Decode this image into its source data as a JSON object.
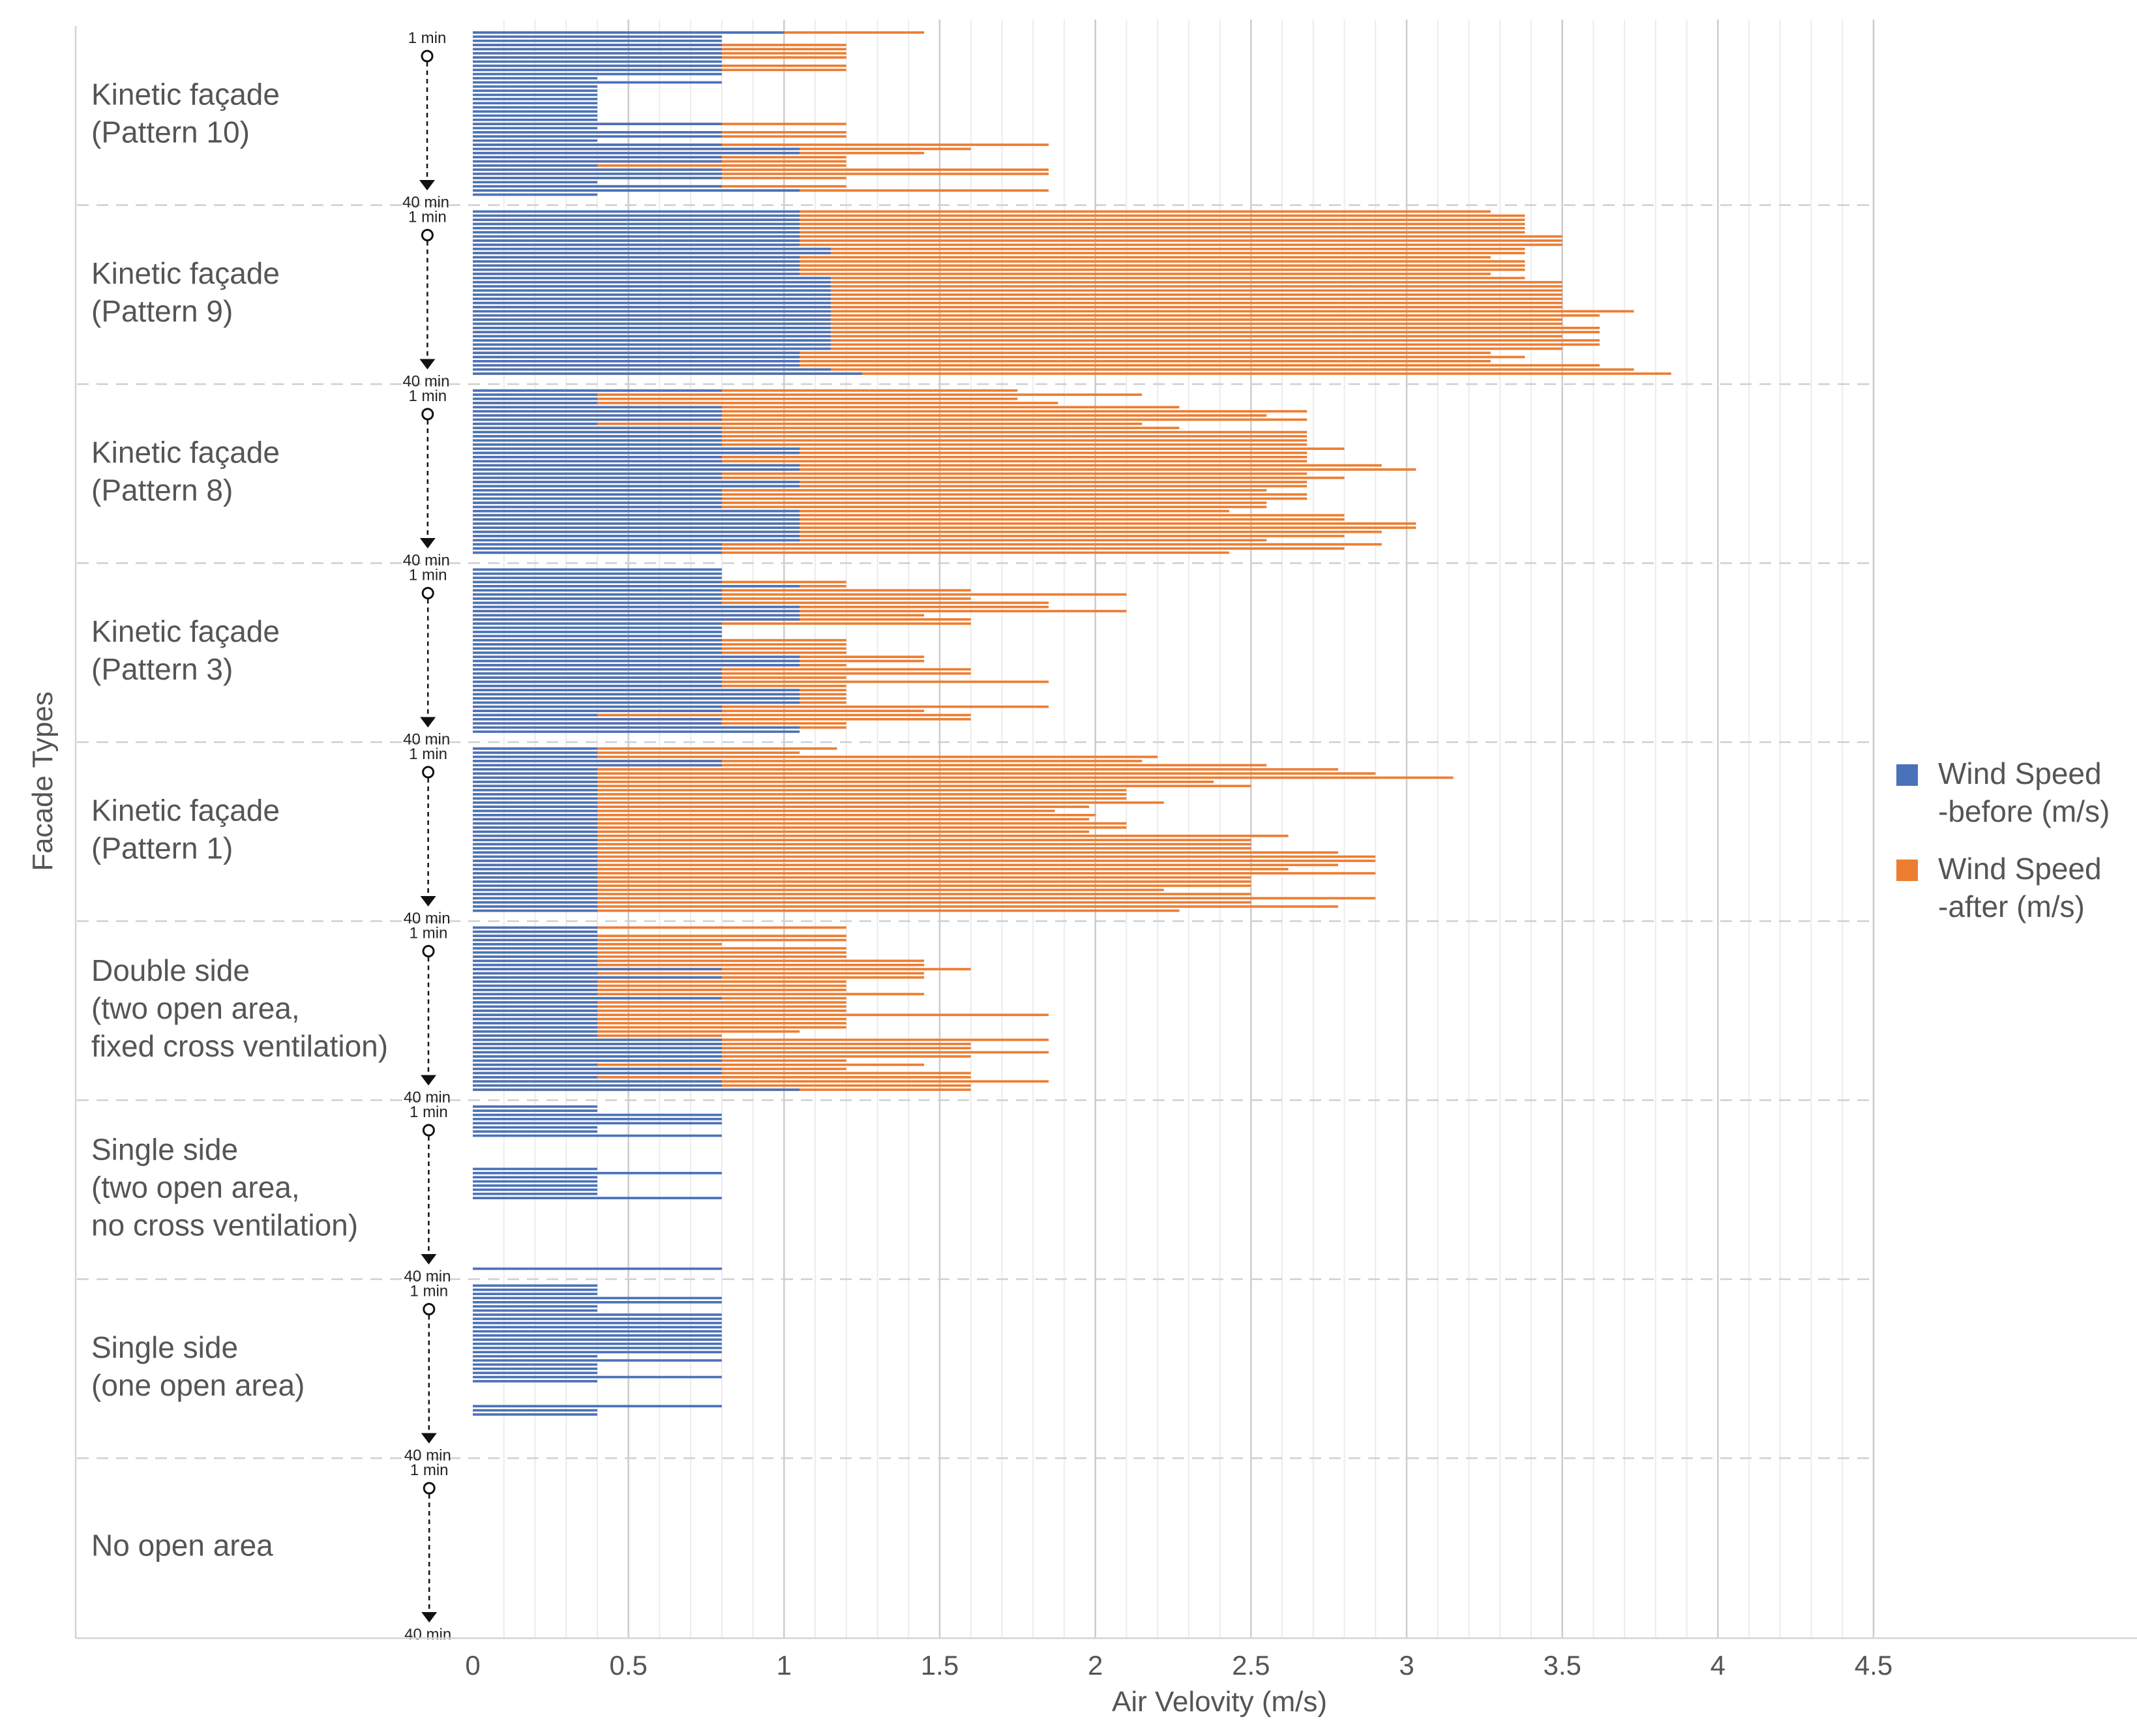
{
  "chart_data": {
    "type": "bar",
    "orientation": "horizontal",
    "xlabel": "Air Velovity (m/s)",
    "ylabel": "Facade Types",
    "xlim": [
      0,
      4.5
    ],
    "xticks": [
      "0",
      "0.5",
      "1",
      "1.5",
      "2",
      "2.5",
      "3",
      "3.5",
      "4",
      "4.5"
    ],
    "grid": "vertical",
    "legend_position": "right",
    "series": [
      {
        "name": "Wind Speed -before (m/s)",
        "legend_lines": [
          "Wind Speed",
          "-before (m/s)"
        ],
        "color": "#4a72b8"
      },
      {
        "name": "Wind Speed -after (m/s)",
        "legend_lines": [
          "Wind Speed",
          "-after (m/s)"
        ],
        "color": "#ed7d31"
      }
    ],
    "time_start_label": "1 min",
    "time_end_label": "40 min",
    "groups": [
      {
        "label_lines": [
          "Kinetic façade",
          "(Pattern 10)"
        ],
        "before": [
          1.0,
          0.8,
          0.8,
          0.8,
          0.8,
          0.8,
          0.8,
          0.8,
          0.8,
          0.8,
          0.8,
          0.4,
          0.8,
          0.4,
          0.4,
          0.4,
          0.4,
          0.4,
          0.4,
          0.4,
          0.4,
          0.4,
          0.8,
          0.4,
          0.8,
          0.8,
          0.4,
          0.8,
          1.05,
          1.05,
          0.8,
          0.8,
          0.4,
          0.8,
          0.8,
          0.8,
          0.4,
          0.8,
          1.05,
          0.4
        ],
        "after": [
          1.45,
          0,
          0,
          1.2,
          1.2,
          1.2,
          1.2,
          0,
          1.2,
          1.2,
          0,
          0,
          0,
          0,
          0,
          0,
          0,
          0,
          0,
          0,
          0,
          0,
          1.2,
          0,
          1.2,
          1.2,
          0,
          1.85,
          1.6,
          1.45,
          1.2,
          1.2,
          1.2,
          1.85,
          1.85,
          1.2,
          0,
          1.2,
          1.85,
          0
        ]
      },
      {
        "label_lines": [
          "Kinetic façade",
          "(Pattern 9)"
        ],
        "before": [
          1.05,
          1.05,
          1.05,
          1.05,
          1.05,
          1.05,
          1.05,
          1.05,
          1.05,
          1.15,
          1.15,
          1.05,
          1.05,
          1.05,
          1.05,
          1.05,
          1.15,
          1.15,
          1.15,
          1.15,
          1.15,
          1.15,
          1.15,
          1.15,
          1.15,
          1.15,
          1.15,
          1.15,
          1.15,
          1.15,
          1.15,
          1.15,
          1.15,
          1.15,
          1.05,
          1.05,
          1.05,
          1.05,
          1.15,
          1.25
        ],
        "after": [
          3.27,
          3.38,
          3.38,
          3.38,
          3.38,
          3.38,
          3.5,
          3.5,
          3.5,
          3.38,
          3.38,
          3.27,
          3.38,
          3.38,
          3.38,
          3.27,
          3.38,
          3.5,
          3.5,
          3.5,
          3.5,
          3.5,
          3.5,
          3.5,
          3.73,
          3.62,
          3.5,
          3.5,
          3.62,
          3.62,
          3.5,
          3.62,
          3.62,
          3.5,
          3.27,
          3.38,
          3.27,
          3.62,
          3.73,
          3.85
        ]
      },
      {
        "label_lines": [
          "Kinetic façade",
          "(Pattern 8)"
        ],
        "before": [
          0.8,
          0.4,
          0.4,
          0.4,
          0.8,
          0.8,
          0.8,
          0.8,
          0.4,
          0.8,
          0.8,
          0.8,
          0.8,
          0.8,
          1.05,
          1.05,
          0.8,
          0.8,
          1.05,
          1.05,
          0.8,
          0.8,
          1.05,
          1.05,
          0.8,
          0.8,
          0.8,
          0.8,
          0.8,
          1.05,
          1.05,
          1.05,
          1.05,
          1.05,
          1.05,
          1.05,
          1.05,
          0.8,
          0.8,
          0.8
        ],
        "after": [
          1.75,
          2.15,
          1.75,
          1.88,
          2.27,
          2.68,
          2.55,
          2.68,
          2.15,
          2.27,
          2.68,
          2.68,
          2.68,
          2.68,
          2.8,
          2.68,
          2.68,
          2.68,
          2.92,
          3.03,
          2.68,
          2.8,
          2.68,
          2.68,
          2.55,
          2.68,
          2.68,
          2.55,
          2.55,
          2.43,
          2.8,
          2.8,
          3.03,
          3.03,
          2.92,
          2.8,
          2.55,
          2.92,
          2.8,
          2.43
        ]
      },
      {
        "label_lines": [
          "Kinetic façade",
          "(Pattern 3)"
        ],
        "before": [
          0.8,
          0.8,
          0.8,
          0.8,
          1.05,
          0.8,
          0.8,
          0.8,
          0.8,
          1.05,
          1.05,
          1.05,
          1.05,
          0.8,
          0.8,
          0.8,
          0.8,
          0.8,
          0.8,
          0.8,
          0.8,
          1.05,
          1.05,
          1.05,
          0.8,
          0.8,
          0.8,
          0.8,
          0.8,
          1.05,
          1.05,
          1.05,
          1.05,
          0.8,
          0.8,
          0.4,
          0.8,
          0.8,
          1.05,
          1.05
        ],
        "after": [
          0,
          0,
          0,
          1.2,
          1.2,
          1.6,
          2.1,
          1.6,
          1.85,
          1.85,
          2.1,
          1.45,
          1.6,
          1.6,
          0,
          0,
          0,
          1.2,
          1.2,
          1.2,
          1.2,
          1.45,
          1.45,
          1.2,
          1.6,
          1.6,
          1.2,
          1.85,
          1.2,
          1.2,
          1.2,
          1.2,
          1.2,
          1.85,
          1.45,
          1.6,
          1.6,
          1.2,
          1.2,
          0
        ]
      },
      {
        "label_lines": [
          "Kinetic façade",
          "(Pattern 1)"
        ],
        "before": [
          0.4,
          0.4,
          0.4,
          0.8,
          0.8,
          0.4,
          0.4,
          0.4,
          0.4,
          0.4,
          0.4,
          0.4,
          0.4,
          0.4,
          0.4,
          0.4,
          0.4,
          0.4,
          0.4,
          0.4,
          0.4,
          0.4,
          0.4,
          0.4,
          0.4,
          0.4,
          0.4,
          0.4,
          0.4,
          0.4,
          0.4,
          0.4,
          0.4,
          0.4,
          0.4,
          0.4,
          0.4,
          0.4,
          0.4,
          0.4
        ],
        "after": [
          1.17,
          1.05,
          2.2,
          2.15,
          2.55,
          2.78,
          2.9,
          3.15,
          2.38,
          2.5,
          2.1,
          2.1,
          2.1,
          2.22,
          1.98,
          1.87,
          2.0,
          1.98,
          2.1,
          2.1,
          1.98,
          2.62,
          2.5,
          2.5,
          2.5,
          2.78,
          2.9,
          2.9,
          2.78,
          2.62,
          2.9,
          2.5,
          2.5,
          2.5,
          2.22,
          2.5,
          2.9,
          2.5,
          2.78,
          2.27
        ]
      },
      {
        "label_lines": [
          "Double side",
          "(two open area,",
          "fixed cross ventilation)"
        ],
        "before": [
          0.4,
          0.4,
          0.4,
          0.4,
          0.4,
          0.4,
          0.4,
          0.4,
          0.4,
          0.4,
          0.8,
          0.4,
          0.8,
          0.4,
          0.4,
          0.4,
          0.4,
          0.8,
          0.4,
          0.4,
          0.4,
          0.4,
          0.4,
          0.4,
          0.4,
          0.4,
          0.4,
          0.8,
          0.8,
          0.8,
          0.8,
          0.8,
          0.8,
          0.4,
          0.8,
          0.8,
          0.4,
          0.8,
          0.8,
          1.05
        ],
        "after": [
          1.2,
          0.4,
          1.2,
          1.2,
          0.8,
          1.2,
          1.2,
          1.2,
          1.45,
          1.45,
          1.6,
          1.45,
          1.45,
          1.2,
          1.2,
          1.2,
          1.45,
          1.2,
          1.2,
          1.2,
          1.2,
          1.85,
          1.2,
          1.2,
          1.2,
          1.05,
          0.8,
          1.85,
          1.6,
          1.6,
          1.85,
          1.6,
          1.2,
          1.45,
          1.2,
          1.6,
          1.6,
          1.85,
          1.6,
          1.6
        ]
      },
      {
        "label_lines": [
          "Single side",
          "(two open area,",
          "no cross ventilation)"
        ],
        "before": [
          0.4,
          0.4,
          0.8,
          0.8,
          0.8,
          0.4,
          0.4,
          0.8,
          0,
          0,
          0,
          0,
          0,
          0,
          0,
          0.4,
          0.8,
          0.4,
          0.4,
          0.4,
          0.4,
          0.4,
          0.8,
          0,
          0,
          0,
          0,
          0,
          0,
          0,
          0,
          0,
          0,
          0,
          0,
          0,
          0,
          0,
          0,
          0.8
        ],
        "after": [
          0,
          0,
          0,
          0,
          0,
          0,
          0,
          0,
          0,
          0,
          0,
          0,
          0,
          0,
          0,
          0,
          0,
          0,
          0,
          0,
          0,
          0,
          0,
          0,
          0,
          0,
          0,
          0,
          0,
          0,
          0,
          0,
          0,
          0,
          0,
          0,
          0,
          0,
          0,
          0
        ]
      },
      {
        "label_lines": [
          "Single side",
          "(one open area)"
        ],
        "before": [
          0.4,
          0.4,
          0.4,
          0.8,
          0.8,
          0.4,
          0.4,
          0.8,
          0.8,
          0.8,
          0.8,
          0.8,
          0.8,
          0.8,
          0.8,
          0.8,
          0.8,
          0.4,
          0.8,
          0.4,
          0.4,
          0.4,
          0.8,
          0.4,
          0,
          0,
          0,
          0,
          0,
          0.8,
          0.4,
          0.4,
          0,
          0,
          0,
          0,
          0,
          0,
          0,
          0
        ],
        "after": [
          0,
          0,
          0,
          0,
          0,
          0,
          0,
          0,
          0,
          0,
          0,
          0,
          0,
          0,
          0,
          0,
          0,
          0,
          0,
          0,
          0,
          0,
          0,
          0,
          0,
          0,
          0,
          0,
          0,
          0,
          0,
          0,
          0,
          0,
          0,
          0,
          0,
          0,
          0,
          0
        ]
      },
      {
        "label_lines": [
          "No open area"
        ],
        "before": [
          0,
          0,
          0,
          0,
          0,
          0,
          0,
          0,
          0,
          0,
          0,
          0,
          0,
          0,
          0,
          0,
          0,
          0,
          0,
          0,
          0,
          0,
          0,
          0,
          0,
          0,
          0,
          0,
          0,
          0,
          0,
          0,
          0,
          0,
          0,
          0,
          0,
          0,
          0,
          0
        ],
        "after": [
          0,
          0,
          0,
          0,
          0,
          0,
          0,
          0,
          0,
          0,
          0,
          0,
          0,
          0,
          0,
          0,
          0,
          0,
          0,
          0,
          0,
          0,
          0,
          0,
          0,
          0,
          0,
          0,
          0,
          0,
          0,
          0,
          0,
          0,
          0,
          0,
          0,
          0,
          0,
          0
        ]
      }
    ]
  }
}
